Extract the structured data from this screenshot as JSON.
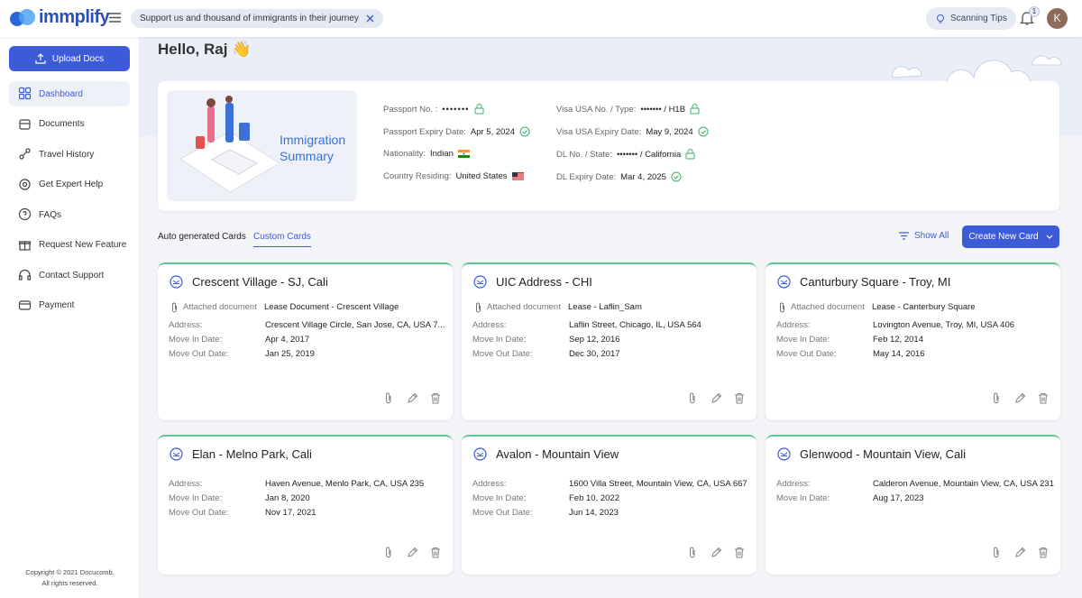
{
  "brand": "immplify",
  "banner": "Support us and thousand of immigrants in their journey",
  "header": {
    "scanning_tips": "Scanning Tips",
    "notification_count": 1,
    "avatar": "K"
  },
  "sidebar": {
    "upload": "Upload Docs",
    "nav": [
      "Dashboard",
      "Documents",
      "Travel History",
      "Get Expert Help",
      "FAQs",
      "Request New Feature",
      "Contact Support",
      "Payment"
    ],
    "footer": [
      "Copyright © 2021 Docucomb.",
      "All rights reserved."
    ]
  },
  "greeting": "Hello, Raj 👋",
  "summary": {
    "title": "Immigration Summary",
    "left": [
      {
        "label": "Passport No. :",
        "value": "•••••••"
      },
      {
        "label": "Passport Expiry Date:",
        "value": "Apr 5, 2024"
      },
      {
        "label": "Nationality:",
        "value": "Indian"
      },
      {
        "label": "Country Residing:",
        "value": "United States"
      }
    ],
    "right": [
      {
        "label": "Visa USA No. / Type:",
        "value": "••••••• / H1B"
      },
      {
        "label": "Visa USA Expiry Date:",
        "value": "May 9, 2024"
      },
      {
        "label": "DL No. / State:",
        "value": "••••••• / California"
      },
      {
        "label": "DL Expiry Date:",
        "value": "Mar 4, 2025"
      }
    ]
  },
  "tabs": [
    "Auto generated Cards",
    "Custom Cards"
  ],
  "actions": {
    "show_all": "Show All",
    "create": "Create New Card"
  },
  "cards": [
    {
      "title": "Crescent Village - SJ, Cali",
      "attached_label": "Attached document",
      "attached": "Lease Document - Crescent Village",
      "fields": [
        {
          "label": "Address:",
          "value": "Crescent Village Circle, San Jose, CA, USA 7..."
        },
        {
          "label": "Move In Date:",
          "value": "Apr 4, 2017"
        },
        {
          "label": "Move Out Date:",
          "value": "Jan 25, 2019"
        }
      ]
    },
    {
      "title": "UIC Address - CHI",
      "attached_label": "Attached document",
      "attached": "Lease - Laflin_Sam",
      "fields": [
        {
          "label": "Address:",
          "value": "Laflin Street, Chicago, IL, USA 564"
        },
        {
          "label": "Move In Date:",
          "value": "Sep 12, 2016"
        },
        {
          "label": "Move Out Date:",
          "value": "Dec 30, 2017"
        }
      ]
    },
    {
      "title": "Canturbury Square - Troy, MI",
      "attached_label": "Attached document",
      "attached": "Lease - Canterbury Square",
      "fields": [
        {
          "label": "Address:",
          "value": "Lovington Avenue, Troy, MI, USA 406"
        },
        {
          "label": "Move In Date:",
          "value": "Feb 12, 2014"
        },
        {
          "label": "Move Out Date:",
          "value": "May 14, 2016"
        }
      ]
    },
    {
      "title": "Elan - Melno Park, Cali",
      "fields": [
        {
          "label": "Address:",
          "value": "Haven Avenue, Menlo Park, CA, USA 235"
        },
        {
          "label": "Move In Date:",
          "value": "Jan 8, 2020"
        },
        {
          "label": "Move Out Date:",
          "value": "Nov 17, 2021"
        }
      ]
    },
    {
      "title": "Avalon - Mountain View",
      "fields": [
        {
          "label": "Address:",
          "value": "1600 Villa Street, Mountain View, CA, USA 667"
        },
        {
          "label": "Move In Date:",
          "value": "Feb 10, 2022"
        },
        {
          "label": "Move Out Date:",
          "value": "Jun 14, 2023"
        }
      ]
    },
    {
      "title": "Glenwood - Mountain View, Cali",
      "fields": [
        {
          "label": "Address:",
          "value": "Calderon Avenue, Mountain View, CA, USA 231"
        },
        {
          "label": "Move In Date:",
          "value": "Aug 17, 2023"
        }
      ]
    }
  ]
}
